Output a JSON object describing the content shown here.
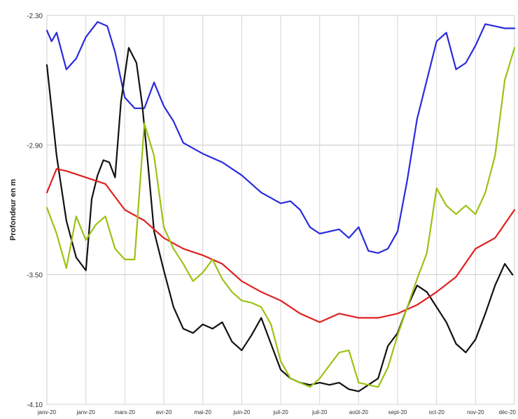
{
  "chart_data": {
    "type": "line",
    "title": "",
    "xlabel": "",
    "ylabel": "Profondeur en m",
    "ylim": [
      -4.1,
      -2.3
    ],
    "y_inverted_axis": true,
    "y_ticks": [
      -2.3,
      -2.9,
      -3.5,
      -4.1
    ],
    "y_tick_labels": [
      "-2.30",
      "-2.90",
      "-3.50",
      "-4.10"
    ],
    "x_tick_labels": [
      "janv-20",
      "janv-20",
      "mars-20",
      "avr-20",
      "mai-20",
      "juin-20",
      "juil-20",
      "juil-20",
      "août-20",
      "sept-20",
      "oct-20",
      "nov-20",
      "déc-20"
    ],
    "grid": true,
    "series": [
      {
        "color": "#2a2adf",
        "x": [
          0,
          0.12,
          0.25,
          0.5,
          0.75,
          1.0,
          1.3,
          1.55,
          1.75,
          2.0,
          2.25,
          2.5,
          2.75,
          3.0,
          3.25,
          3.5,
          4.0,
          4.5,
          5.0,
          5.25,
          5.5,
          6.0,
          6.25,
          6.5,
          6.75,
          7.0,
          7.25,
          7.5,
          7.75,
          8.0,
          8.25,
          8.5,
          8.75,
          9.0,
          9.25,
          9.5,
          10.0,
          10.25,
          10.5,
          10.75,
          11.0,
          11.25,
          11.5,
          11.75,
          12.0
        ],
        "values": [
          -2.37,
          -2.42,
          -2.38,
          -2.55,
          -2.5,
          -2.4,
          -2.33,
          -2.35,
          -2.47,
          -2.68,
          -2.73,
          -2.73,
          -2.61,
          -2.72,
          -2.79,
          -2.89,
          -2.94,
          -2.98,
          -3.04,
          -3.08,
          -3.12,
          -3.17,
          -3.16,
          -3.2,
          -3.28,
          -3.31,
          -3.3,
          -3.29,
          -3.33,
          -3.28,
          -3.39,
          -3.4,
          -3.38,
          -3.3,
          -3.06,
          -2.78,
          -2.42,
          -2.38,
          -2.55,
          -2.52,
          -2.44,
          -2.34,
          -2.35,
          -2.36,
          -2.36
        ]
      },
      {
        "color": "#111111",
        "x": [
          0,
          0.25,
          0.5,
          0.75,
          1.0,
          1.15,
          1.3,
          1.45,
          1.6,
          1.75,
          1.9,
          2.1,
          2.3,
          2.45,
          2.6,
          2.75,
          3.0,
          3.25,
          3.5,
          3.75,
          4.0,
          4.25,
          4.5,
          4.75,
          5.0,
          5.25,
          5.5,
          5.75,
          6.0,
          6.25,
          6.5,
          6.75,
          7.0,
          7.25,
          7.5,
          7.75,
          8.0,
          8.25,
          8.5,
          8.75,
          9.0,
          9.25,
          9.5,
          9.75,
          10.0,
          10.25,
          10.5,
          10.75,
          11.0,
          11.25,
          11.5,
          11.75,
          11.95
        ],
        "values": [
          -2.53,
          -2.95,
          -3.25,
          -3.42,
          -3.48,
          -3.15,
          -3.04,
          -2.97,
          -2.98,
          -3.05,
          -2.7,
          -2.45,
          -2.52,
          -2.72,
          -3.0,
          -3.3,
          -3.48,
          -3.65,
          -3.75,
          -3.77,
          -3.73,
          -3.75,
          -3.72,
          -3.81,
          -3.85,
          -3.78,
          -3.7,
          -3.82,
          -3.94,
          -3.98,
          -4.0,
          -4.01,
          -4.0,
          -4.01,
          -4.0,
          -4.03,
          -4.04,
          -4.01,
          -3.98,
          -3.83,
          -3.77,
          -3.65,
          -3.55,
          -3.58,
          -3.65,
          -3.72,
          -3.82,
          -3.86,
          -3.8,
          -3.68,
          -3.55,
          -3.45,
          -3.5
        ]
      },
      {
        "color": "#e02020",
        "x": [
          0,
          0.25,
          0.5,
          1.0,
          1.5,
          2.0,
          2.5,
          3.0,
          3.5,
          4.0,
          4.25,
          4.5,
          5.0,
          5.5,
          6.0,
          6.5,
          7.0,
          7.5,
          8.0,
          8.5,
          9.0,
          9.5,
          10.0,
          10.5,
          11.0,
          11.5,
          12.0
        ],
        "values": [
          -3.12,
          -3.01,
          -3.02,
          -3.05,
          -3.08,
          -3.2,
          -3.25,
          -3.33,
          -3.38,
          -3.41,
          -3.43,
          -3.45,
          -3.53,
          -3.58,
          -3.62,
          -3.68,
          -3.72,
          -3.68,
          -3.7,
          -3.7,
          -3.68,
          -3.64,
          -3.58,
          -3.51,
          -3.38,
          -3.33,
          -3.2
        ]
      },
      {
        "color": "#9ac314",
        "x": [
          0,
          0.25,
          0.5,
          0.75,
          1.0,
          1.25,
          1.5,
          1.75,
          2.0,
          2.25,
          2.5,
          2.75,
          3.0,
          3.25,
          3.5,
          3.75,
          4.0,
          4.25,
          4.5,
          4.75,
          5.0,
          5.25,
          5.5,
          5.75,
          6.0,
          6.25,
          6.5,
          6.75,
          7.0,
          7.25,
          7.5,
          7.75,
          8.0,
          8.25,
          8.5,
          8.75,
          9.0,
          9.25,
          9.5,
          9.75,
          10.0,
          10.25,
          10.5,
          10.75,
          11.0,
          11.25,
          11.5,
          11.75,
          12.0
        ],
        "values": [
          -3.19,
          -3.31,
          -3.47,
          -3.23,
          -3.34,
          -3.27,
          -3.23,
          -3.38,
          -3.43,
          -3.43,
          -2.8,
          -2.95,
          -3.28,
          -3.38,
          -3.45,
          -3.53,
          -3.49,
          -3.43,
          -3.52,
          -3.58,
          -3.62,
          -3.63,
          -3.65,
          -3.73,
          -3.9,
          -3.98,
          -4.0,
          -4.02,
          -3.98,
          -3.92,
          -3.86,
          -3.85,
          -4.0,
          -4.01,
          -4.02,
          -3.93,
          -3.78,
          -3.65,
          -3.52,
          -3.4,
          -3.1,
          -3.18,
          -3.22,
          -3.18,
          -3.22,
          -3.12,
          -2.95,
          -2.6,
          -2.45
        ]
      }
    ]
  }
}
